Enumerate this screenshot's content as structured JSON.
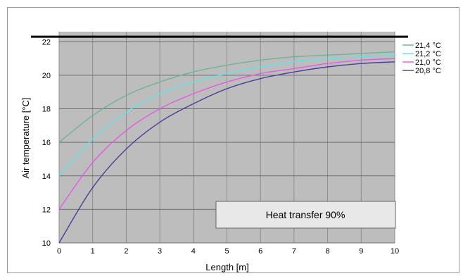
{
  "chart_data": {
    "type": "line",
    "xlabel": "Length [m]",
    "ylabel": "Air temperature [°C]",
    "xlim": [
      0,
      10
    ],
    "ylim": [
      10,
      22.6
    ],
    "xticks": [
      "0",
      "1",
      "2",
      "3",
      "4",
      "5",
      "6",
      "7",
      "8",
      "9",
      "10"
    ],
    "yticks": [
      "10",
      "12",
      "14",
      "16",
      "18",
      "20",
      "22"
    ],
    "grid": true,
    "legend_position": "right",
    "reference_line": {
      "y": 22.3,
      "color": "#000000"
    },
    "annotation": "Heat transfer 90%",
    "x": [
      0,
      1,
      2,
      3,
      4,
      5,
      6,
      7,
      8,
      9,
      10
    ],
    "series": [
      {
        "name": "21,4 °C",
        "color": "#6fb29a",
        "values": [
          16.0,
          17.6,
          18.8,
          19.6,
          20.2,
          20.6,
          20.9,
          21.1,
          21.2,
          21.3,
          21.4
        ]
      },
      {
        "name": "21,2 °C",
        "color": "#5fe3e8",
        "values": [
          14.0,
          16.2,
          17.8,
          18.9,
          19.6,
          20.1,
          20.5,
          20.8,
          21.0,
          21.1,
          21.2
        ]
      },
      {
        "name": "21,0 °C",
        "color": "#e45ae6",
        "values": [
          12.0,
          14.8,
          16.7,
          18.0,
          18.9,
          19.6,
          20.1,
          20.4,
          20.7,
          20.9,
          21.0
        ]
      },
      {
        "name": "20,8 °C",
        "color": "#4a3f97",
        "values": [
          10.0,
          13.3,
          15.6,
          17.2,
          18.3,
          19.2,
          19.8,
          20.2,
          20.5,
          20.7,
          20.8
        ]
      }
    ]
  }
}
